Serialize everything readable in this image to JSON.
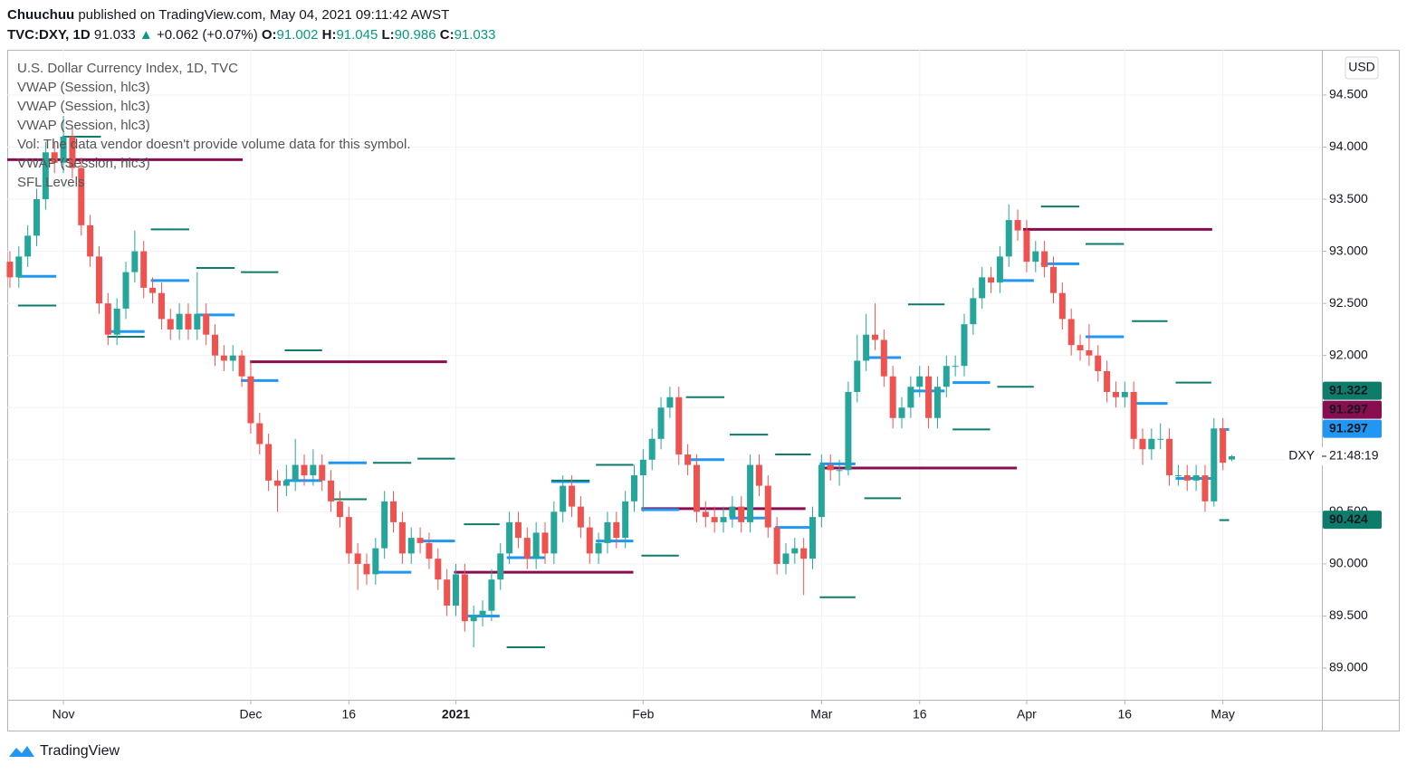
{
  "header": {
    "author": "Chuuchuu",
    "published": "published on TradingView.com, May 04, 2021 09:11:42 AWST",
    "symbol": "TVC:DXY, 1D",
    "last": "91.033",
    "change": "+0.062 (+0.07%)",
    "ohlc": [
      {
        "label": "O:",
        "value": "91.002"
      },
      {
        "label": "H:",
        "value": "91.045"
      },
      {
        "label": "L:",
        "value": "90.986"
      },
      {
        "label": "C:",
        "value": "91.033"
      }
    ]
  },
  "legend": [
    "U.S. Dollar Currency Index, 1D, TVC",
    "VWAP (Session, hlc3)",
    "VWAP (Session, hlc3)",
    "VWAP (Session, hlc3)",
    "Vol: The data vendor doesn't provide volume data for this symbol.",
    "VWAP (Session, hlc3)",
    "SFL Levels"
  ],
  "currency_button": "USD",
  "footer": "TradingView",
  "chart_data": {
    "type": "candlestick",
    "up_color": "#26a69a",
    "down_color": "#ef5350",
    "grid": true,
    "ylim": [
      88.696,
      94.934
    ],
    "yticks": [
      {
        "value": 89,
        "label": "89.000"
      },
      {
        "value": 89.5,
        "label": "89.500"
      },
      {
        "value": 90,
        "label": "90.000"
      },
      {
        "value": 90.5,
        "label": "90.500"
      },
      {
        "value": 91,
        "label": "91.000"
      },
      {
        "value": 91.5,
        "label": "91.500"
      },
      {
        "value": 92,
        "label": "92.000"
      },
      {
        "value": 92.5,
        "label": "92.500"
      },
      {
        "value": 93,
        "label": "93.000"
      },
      {
        "value": 93.5,
        "label": "93.500"
      },
      {
        "value": 94,
        "label": "94.000"
      },
      {
        "value": 94.5,
        "label": "94.500"
      }
    ],
    "xlim": [
      -0.3,
      147.1
    ],
    "xticks": [
      {
        "value": 6,
        "label": "Nov"
      },
      {
        "value": 27,
        "label": "Dec"
      },
      {
        "value": 38,
        "label": "16"
      },
      {
        "value": 50,
        "label": "2021"
      },
      {
        "value": 71,
        "label": "Feb"
      },
      {
        "value": 91,
        "label": "Mar"
      },
      {
        "value": 102,
        "label": "16"
      },
      {
        "value": 114,
        "label": "Apr"
      },
      {
        "value": 125,
        "label": "16"
      },
      {
        "value": 136,
        "label": "May"
      }
    ],
    "x": [
      0,
      1,
      2,
      3,
      4,
      5,
      6,
      7,
      8,
      9,
      10,
      11,
      12,
      13,
      14,
      15,
      16,
      17,
      18,
      19,
      20,
      21,
      22,
      23,
      24,
      25,
      26,
      27,
      28,
      29,
      30,
      31,
      32,
      33,
      34,
      35,
      36,
      37,
      38,
      39,
      40,
      41,
      42,
      43,
      44,
      45,
      46,
      47,
      48,
      49,
      50,
      51,
      52,
      53,
      54,
      55,
      56,
      57,
      58,
      59,
      60,
      61,
      62,
      63,
      64,
      65,
      66,
      67,
      68,
      69,
      70,
      71,
      72,
      73,
      74,
      75,
      76,
      77,
      78,
      79,
      80,
      81,
      82,
      83,
      84,
      85,
      86,
      87,
      88,
      89,
      90,
      91,
      92,
      93,
      94,
      95,
      96,
      97,
      98,
      99,
      100,
      101,
      102,
      103,
      104,
      105,
      106,
      107,
      108,
      109,
      110,
      111,
      112,
      113,
      114,
      115,
      116,
      117,
      118,
      119,
      120,
      121,
      122,
      123,
      124,
      125,
      126,
      127,
      128,
      129,
      130,
      131,
      132,
      133,
      134,
      135,
      136,
      137
    ],
    "open": [
      92.9,
      92.75,
      92.95,
      93.15,
      93.5,
      93.95,
      93.85,
      94.1,
      93.8,
      93.25,
      92.95,
      92.5,
      92.2,
      92.45,
      92.8,
      93.0,
      92.65,
      92.6,
      92.35,
      92.25,
      92.4,
      92.25,
      92.4,
      92.2,
      92.0,
      91.95,
      92.0,
      91.8,
      91.35,
      91.15,
      90.8,
      90.75,
      90.8,
      90.95,
      90.85,
      90.95,
      90.8,
      90.6,
      90.45,
      90.1,
      90.0,
      89.9,
      90.15,
      90.6,
      90.4,
      90.1,
      90.25,
      90.2,
      90.05,
      89.85,
      89.6,
      89.9,
      89.45,
      89.5,
      89.55,
      89.85,
      90.1,
      90.4,
      90.25,
      90.05,
      90.3,
      90.1,
      90.5,
      90.75,
      90.55,
      90.35,
      90.1,
      90.2,
      90.4,
      90.25,
      90.6,
      90.85,
      91.0,
      91.2,
      91.5,
      91.6,
      91.05,
      90.95,
      90.5,
      90.45,
      90.4,
      90.45,
      90.55,
      90.4,
      90.95,
      90.75,
      90.35,
      90.0,
      90.1,
      90.15,
      90.05,
      90.45,
      90.95,
      90.9,
      90.9,
      91.65,
      91.95,
      92.2,
      92.15,
      91.8,
      91.4,
      91.5,
      91.7,
      91.8,
      91.4,
      91.7,
      91.9,
      91.9,
      92.3,
      92.55,
      92.75,
      92.7,
      92.95,
      93.3,
      93.2,
      92.9,
      93.0,
      92.85,
      92.6,
      92.35,
      92.1,
      92.05,
      92.0,
      91.85,
      91.65,
      91.6,
      91.65,
      91.2,
      91.1,
      91.2,
      91.2,
      90.85,
      90.85,
      90.8,
      90.85,
      90.6,
      91.3,
      91.002
    ],
    "high": [
      93.0,
      93.05,
      93.25,
      93.6,
      94.05,
      94.05,
      94.3,
      94.2,
      93.9,
      93.35,
      93.05,
      92.6,
      92.55,
      92.9,
      93.2,
      93.1,
      92.75,
      92.7,
      92.45,
      92.5,
      92.5,
      92.8,
      92.5,
      92.3,
      92.1,
      92.1,
      92.05,
      91.95,
      91.45,
      91.25,
      90.9,
      90.95,
      91.2,
      91.05,
      91.1,
      91.05,
      90.9,
      90.7,
      90.55,
      90.2,
      90.1,
      90.25,
      90.7,
      90.7,
      90.5,
      90.35,
      90.35,
      90.3,
      90.15,
      89.95,
      90.0,
      90.0,
      89.6,
      89.65,
      89.95,
      90.2,
      90.5,
      90.5,
      90.35,
      90.4,
      90.4,
      90.6,
      90.85,
      90.85,
      90.65,
      90.45,
      90.3,
      90.5,
      90.5,
      90.7,
      90.95,
      91.1,
      91.3,
      91.6,
      91.7,
      91.7,
      91.15,
      91.05,
      90.6,
      90.55,
      90.55,
      90.65,
      90.65,
      91.05,
      91.05,
      90.85,
      90.45,
      90.2,
      90.25,
      90.25,
      90.55,
      91.05,
      91.05,
      91.0,
      91.75,
      92.2,
      92.4,
      92.5,
      92.25,
      91.9,
      91.6,
      91.8,
      91.9,
      91.9,
      91.8,
      92.0,
      92.0,
      92.4,
      92.65,
      92.85,
      92.85,
      93.05,
      93.45,
      93.4,
      93.3,
      93.1,
      93.1,
      92.95,
      92.7,
      92.45,
      92.2,
      92.3,
      92.1,
      91.95,
      91.75,
      91.75,
      91.75,
      91.3,
      91.3,
      91.35,
      91.3,
      90.95,
      90.95,
      90.95,
      90.95,
      91.4,
      91.4,
      91.045
    ],
    "low": [
      92.65,
      92.65,
      92.85,
      93.05,
      93.4,
      93.75,
      93.75,
      93.7,
      93.15,
      92.85,
      92.4,
      92.1,
      92.1,
      92.35,
      92.7,
      92.55,
      92.5,
      92.25,
      92.15,
      92.15,
      92.15,
      92.15,
      92.1,
      91.9,
      91.85,
      91.85,
      91.7,
      91.25,
      91.05,
      90.7,
      90.5,
      90.65,
      90.7,
      90.75,
      90.75,
      90.7,
      90.5,
      90.35,
      90.0,
      89.75,
      89.8,
      89.8,
      90.05,
      90.3,
      90.0,
      90.0,
      90.1,
      89.95,
      89.75,
      89.5,
      89.5,
      89.35,
      89.2,
      89.4,
      89.45,
      89.75,
      90.0,
      90.15,
      89.95,
      89.95,
      90.0,
      90.0,
      90.4,
      90.45,
      90.25,
      90.0,
      90.0,
      90.1,
      90.15,
      90.15,
      90.5,
      90.5,
      90.9,
      91.1,
      91.4,
      90.95,
      90.85,
      90.4,
      90.35,
      90.3,
      90.3,
      90.35,
      90.3,
      90.3,
      90.65,
      90.25,
      89.9,
      89.9,
      90.0,
      89.7,
      89.95,
      90.35,
      90.8,
      90.75,
      90.85,
      91.55,
      91.85,
      92.05,
      91.7,
      91.3,
      91.3,
      91.4,
      91.6,
      91.3,
      91.3,
      91.6,
      91.8,
      91.8,
      92.2,
      92.45,
      92.6,
      92.6,
      92.85,
      93.1,
      92.8,
      92.8,
      92.75,
      92.5,
      92.25,
      92.0,
      91.95,
      91.9,
      91.75,
      91.55,
      91.5,
      91.5,
      91.1,
      90.95,
      91.0,
      91.1,
      90.75,
      90.75,
      90.7,
      90.7,
      90.5,
      90.55,
      90.9,
      90.986
    ],
    "close": [
      92.75,
      92.95,
      93.15,
      93.5,
      93.95,
      93.85,
      94.1,
      93.8,
      93.25,
      92.95,
      92.5,
      92.2,
      92.45,
      92.8,
      93.0,
      92.65,
      92.6,
      92.35,
      92.25,
      92.4,
      92.25,
      92.4,
      92.2,
      92.0,
      91.95,
      92.0,
      91.8,
      91.35,
      91.15,
      90.8,
      90.75,
      90.8,
      90.95,
      90.85,
      90.95,
      90.8,
      90.6,
      90.45,
      90.1,
      90.0,
      89.9,
      90.15,
      90.6,
      90.4,
      90.1,
      90.25,
      90.2,
      90.05,
      89.85,
      89.6,
      89.9,
      89.45,
      89.5,
      89.55,
      89.85,
      90.1,
      90.4,
      90.25,
      90.05,
      90.3,
      90.1,
      90.5,
      90.75,
      90.55,
      90.35,
      90.1,
      90.2,
      90.4,
      90.25,
      90.6,
      90.85,
      91.0,
      91.2,
      91.5,
      91.6,
      91.05,
      90.95,
      90.5,
      90.45,
      90.4,
      90.45,
      90.55,
      90.4,
      90.95,
      90.75,
      90.35,
      90.0,
      90.1,
      90.15,
      90.05,
      90.45,
      90.95,
      90.9,
      90.9,
      91.65,
      91.95,
      92.2,
      92.15,
      91.8,
      91.4,
      91.5,
      91.7,
      91.8,
      91.4,
      91.7,
      91.9,
      91.9,
      92.3,
      92.55,
      92.75,
      92.7,
      92.95,
      93.3,
      93.2,
      92.9,
      93.0,
      92.85,
      92.6,
      92.35,
      92.1,
      92.05,
      92.0,
      91.85,
      91.65,
      91.6,
      91.65,
      91.2,
      91.1,
      91.2,
      91.2,
      90.85,
      90.85,
      90.8,
      90.85,
      90.6,
      91.3,
      90.971,
      91.033
    ],
    "level_lines": [
      {
        "color": "#880e4f",
        "width": 3,
        "segments": [
          [
            -0.3,
            26.1,
            93.88
          ],
          [
            26.9,
            49.0,
            91.94
          ],
          [
            49.8,
            69.9,
            89.92
          ],
          [
            70.8,
            89.2,
            90.53
          ],
          [
            90.8,
            112.9,
            90.92
          ],
          [
            113.6,
            134.8,
            93.21
          ]
        ]
      },
      {
        "color": "#2196f3",
        "width": 3,
        "segments": [
          [
            0.9,
            5.2,
            92.76
          ],
          [
            10.9,
            15.1,
            92.23
          ],
          [
            15.8,
            20.1,
            92.72
          ],
          [
            20.9,
            25.2,
            92.39
          ],
          [
            25.9,
            30.1,
            91.76
          ],
          [
            30.8,
            35.0,
            90.8
          ],
          [
            35.7,
            40.0,
            90.97
          ],
          [
            40.7,
            45.0,
            89.92
          ],
          [
            45.7,
            49.9,
            90.22
          ],
          [
            50.9,
            54.9,
            89.5
          ],
          [
            55.7,
            60.0,
            90.06
          ],
          [
            60.7,
            65.0,
            90.79
          ],
          [
            65.7,
            69.9,
            90.22
          ],
          [
            70.8,
            75.0,
            90.52
          ],
          [
            75.8,
            80.1,
            91.0
          ],
          [
            80.7,
            85.0,
            90.44
          ],
          [
            85.8,
            89.8,
            90.35
          ],
          [
            90.8,
            94.8,
            90.96
          ],
          [
            95.8,
            99.9,
            91.98
          ],
          [
            100.7,
            104.8,
            91.66
          ],
          [
            105.7,
            109.9,
            91.74
          ],
          [
            110.7,
            114.8,
            92.72
          ],
          [
            115.6,
            119.9,
            92.88
          ],
          [
            120.6,
            124.9,
            92.18
          ],
          [
            125.8,
            129.8,
            91.54
          ],
          [
            130.7,
            134.7,
            90.82
          ],
          [
            135.6,
            136.7,
            91.29
          ]
        ]
      },
      {
        "color": "#0e7c6b",
        "width": 2,
        "segments": [
          [
            0.9,
            5.2,
            92.48
          ],
          [
            5.9,
            10.2,
            94.1
          ],
          [
            10.9,
            15.1,
            92.18
          ],
          [
            15.8,
            20.1,
            93.21
          ],
          [
            20.9,
            25.2,
            92.84
          ],
          [
            25.9,
            30.1,
            92.8
          ],
          [
            30.8,
            35.0,
            92.05
          ],
          [
            35.7,
            40.0,
            90.62
          ],
          [
            40.7,
            45.0,
            90.97
          ],
          [
            45.7,
            49.9,
            91.01
          ],
          [
            50.9,
            54.9,
            90.38
          ],
          [
            55.7,
            60.0,
            89.2
          ],
          [
            60.7,
            65.0,
            90.8
          ],
          [
            65.7,
            69.9,
            90.95
          ],
          [
            70.8,
            75.0,
            90.08
          ],
          [
            75.8,
            80.1,
            91.6
          ],
          [
            80.7,
            85.0,
            91.24
          ],
          [
            85.8,
            89.8,
            91.05
          ],
          [
            90.8,
            94.8,
            89.68
          ],
          [
            95.8,
            99.9,
            90.63
          ],
          [
            100.7,
            104.8,
            92.49
          ],
          [
            105.7,
            109.9,
            91.29
          ],
          [
            110.7,
            114.8,
            91.7
          ],
          [
            115.6,
            119.9,
            93.43
          ],
          [
            120.6,
            124.9,
            93.07
          ],
          [
            125.8,
            129.8,
            92.33
          ],
          [
            130.7,
            134.7,
            91.74
          ],
          [
            135.6,
            136.7,
            90.42
          ]
        ]
      }
    ],
    "price_labels": [
      {
        "value": 91.322,
        "color": "#0e7c6b"
      },
      {
        "value": 91.297,
        "color": "#880e4f"
      },
      {
        "value": 91.297,
        "color": "#2196f3"
      },
      {
        "value": 90.424,
        "color": "#0e7c6b"
      }
    ],
    "last_label": {
      "symbol": "DXY",
      "countdown": "21:48:19"
    }
  }
}
